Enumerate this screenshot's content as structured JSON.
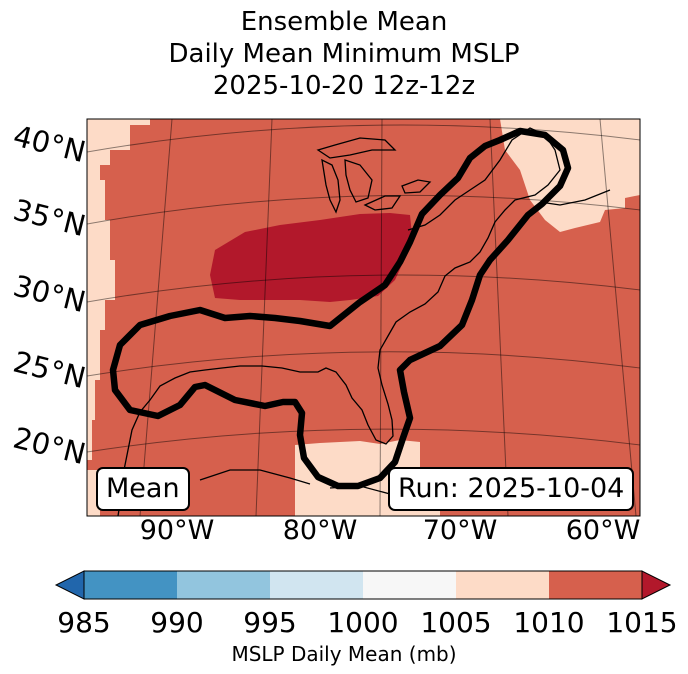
{
  "title": {
    "line1": "Ensemble Mean",
    "line2": "Daily Mean Minimum MSLP",
    "line3": "2025-10-20 12z-12z"
  },
  "map": {
    "lat_labels": [
      "40°N",
      "35°N",
      "30°N",
      "25°N",
      "20°N"
    ],
    "lon_labels": [
      "90°W",
      "80°W",
      "70°W",
      "60°W"
    ],
    "mean_label": "Mean",
    "run_label": "Run: 2025-10-04",
    "fill_colors": {
      "1005-1010": "#fddbc7",
      "1010-1015": "#d6604d",
      "above_1015": "#b2182b"
    },
    "contour_color": "#000000",
    "coastline_color": "#000000"
  },
  "colorbar": {
    "ticks": [
      "985",
      "990",
      "995",
      "1000",
      "1005",
      "1010",
      "1015"
    ],
    "colors": [
      "#2166ac",
      "#4393c3",
      "#92c5de",
      "#d1e5f0",
      "#f7f7f7",
      "#fddbc7",
      "#d6604d",
      "#b2182b"
    ],
    "label": "MSLP Daily Mean (mb)",
    "extend": "both"
  }
}
